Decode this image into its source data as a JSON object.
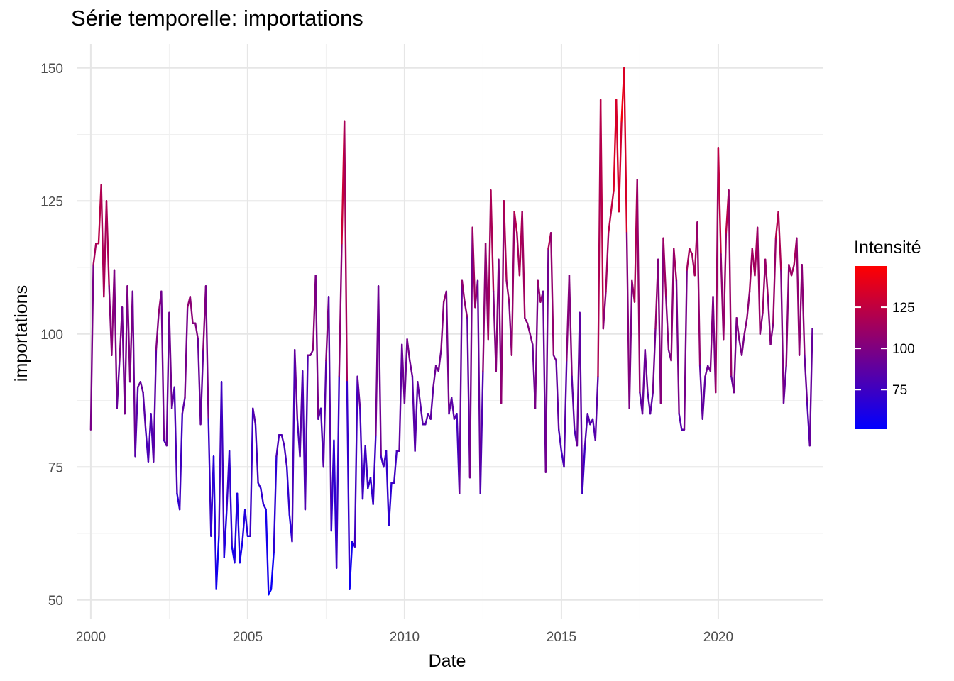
{
  "chart_data": {
    "type": "line",
    "title": "Série temporelle:  importations",
    "xlabel": "Date",
    "ylabel": "importations",
    "xlim": [
      1999.55,
      2023.35
    ],
    "ylim": [
      46.5,
      154.5
    ],
    "x_ticks": [
      2000,
      2005,
      2010,
      2015,
      2020
    ],
    "x_tick_labels": [
      "2000",
      "2005",
      "2010",
      "2015",
      "2020"
    ],
    "y_ticks": [
      50,
      75,
      100,
      125,
      150
    ],
    "y_tick_labels": [
      "50",
      "75",
      "100",
      "125",
      "150"
    ],
    "grid": true,
    "legend": {
      "title": "Intensité",
      "position": "right",
      "color_low": "#0000FF",
      "color_high": "#FF0000",
      "range": [
        51,
        150
      ],
      "breaks": [
        75,
        100,
        125
      ],
      "break_labels": [
        "75",
        "100",
        "125"
      ]
    },
    "series": [
      {
        "x_start": 2000.0,
        "x_step": 0.08333,
        "values": [
          82,
          113,
          117,
          117,
          128,
          107,
          125,
          109,
          96,
          112,
          86,
          95,
          105,
          85,
          109,
          91,
          108,
          77,
          90,
          91,
          89,
          82,
          76,
          85,
          76,
          97,
          104,
          108,
          80,
          79,
          104,
          86,
          90,
          70,
          67,
          85,
          88,
          105,
          107,
          102,
          102,
          99,
          83,
          97,
          109,
          84,
          62,
          77,
          52,
          62,
          91,
          58,
          67,
          78,
          60,
          57,
          70,
          57,
          61,
          67,
          62,
          62,
          86,
          83,
          72,
          71,
          68,
          67,
          51,
          52,
          59,
          77,
          81,
          81,
          79,
          75,
          66,
          61,
          97,
          84,
          77,
          93,
          67,
          96,
          96,
          97,
          111,
          84,
          86,
          75,
          95,
          107,
          63,
          80,
          56,
          92,
          117,
          140,
          91,
          52,
          61,
          60,
          92,
          86,
          69,
          79,
          71,
          73,
          68,
          81,
          109,
          77,
          75,
          78,
          64,
          72,
          72,
          78,
          78,
          98,
          87,
          99,
          95,
          92,
          78,
          91,
          87,
          83,
          83,
          85,
          84,
          90,
          94,
          93,
          97,
          106,
          108,
          85,
          88,
          84,
          85,
          70,
          110,
          106,
          103,
          73,
          120,
          105,
          110,
          70,
          93,
          117,
          99,
          127,
          108,
          93,
          114,
          87,
          125,
          110,
          106,
          96,
          123,
          119,
          111,
          123,
          103,
          102,
          100,
          98,
          86,
          110,
          106,
          108,
          74,
          116,
          119,
          96,
          95,
          82,
          78,
          75,
          95,
          111,
          92,
          82,
          79,
          104,
          70,
          79,
          85,
          83,
          84,
          80,
          92,
          144,
          101,
          108,
          119,
          123,
          127,
          144,
          123,
          140,
          150,
          119,
          86,
          110,
          106,
          129,
          89,
          85,
          97,
          89,
          85,
          89,
          101,
          114,
          87,
          118,
          107,
          97,
          95,
          116,
          110,
          85,
          82,
          82,
          112,
          116,
          115,
          111,
          121,
          94,
          84,
          92,
          94,
          93,
          107,
          89,
          135,
          115,
          99,
          119,
          127,
          92,
          89,
          103,
          99,
          96,
          100,
          103,
          108,
          116,
          111,
          120,
          100,
          104,
          114,
          107,
          98,
          102,
          118,
          123,
          112,
          87,
          94,
          113,
          111,
          113,
          118,
          96,
          113,
          96,
          87,
          79,
          101
        ]
      }
    ]
  }
}
